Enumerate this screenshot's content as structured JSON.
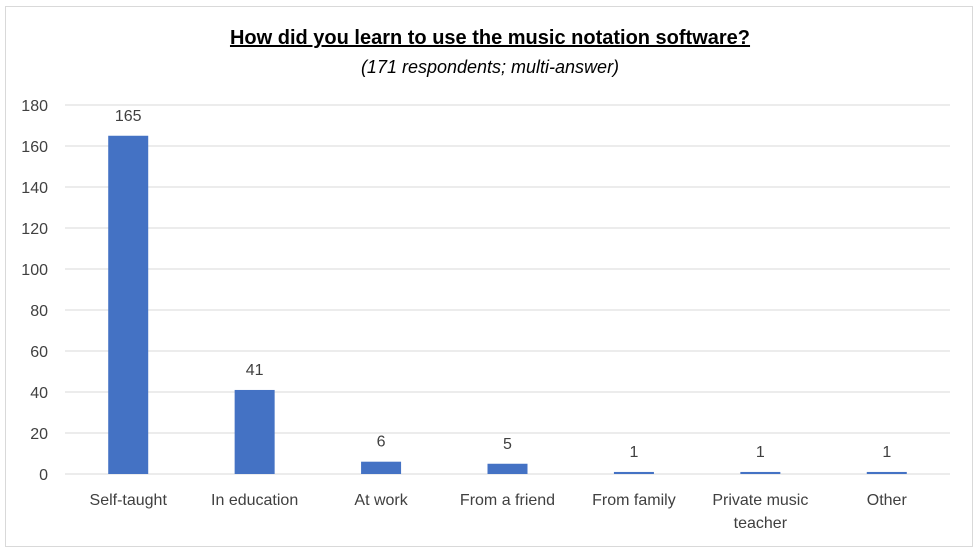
{
  "chart_data": {
    "type": "bar",
    "title": "How did you learn to use the music notation software?",
    "subtitle": "(171 respondents; multi-answer)",
    "categories": [
      [
        "Self-taught"
      ],
      [
        "In education"
      ],
      [
        "At work"
      ],
      [
        "From a friend"
      ],
      [
        "From family"
      ],
      [
        "Private music",
        "teacher"
      ],
      [
        "Other"
      ]
    ],
    "values": [
      165,
      41,
      6,
      5,
      1,
      1,
      1
    ],
    "ylim": [
      0,
      180
    ],
    "yticks": [
      0,
      20,
      40,
      60,
      80,
      100,
      120,
      140,
      160,
      180
    ],
    "grid": true,
    "legend": "none",
    "colors": {
      "bar": "#4472c4",
      "grid": "#d9d9d9",
      "text": "#404040"
    }
  }
}
